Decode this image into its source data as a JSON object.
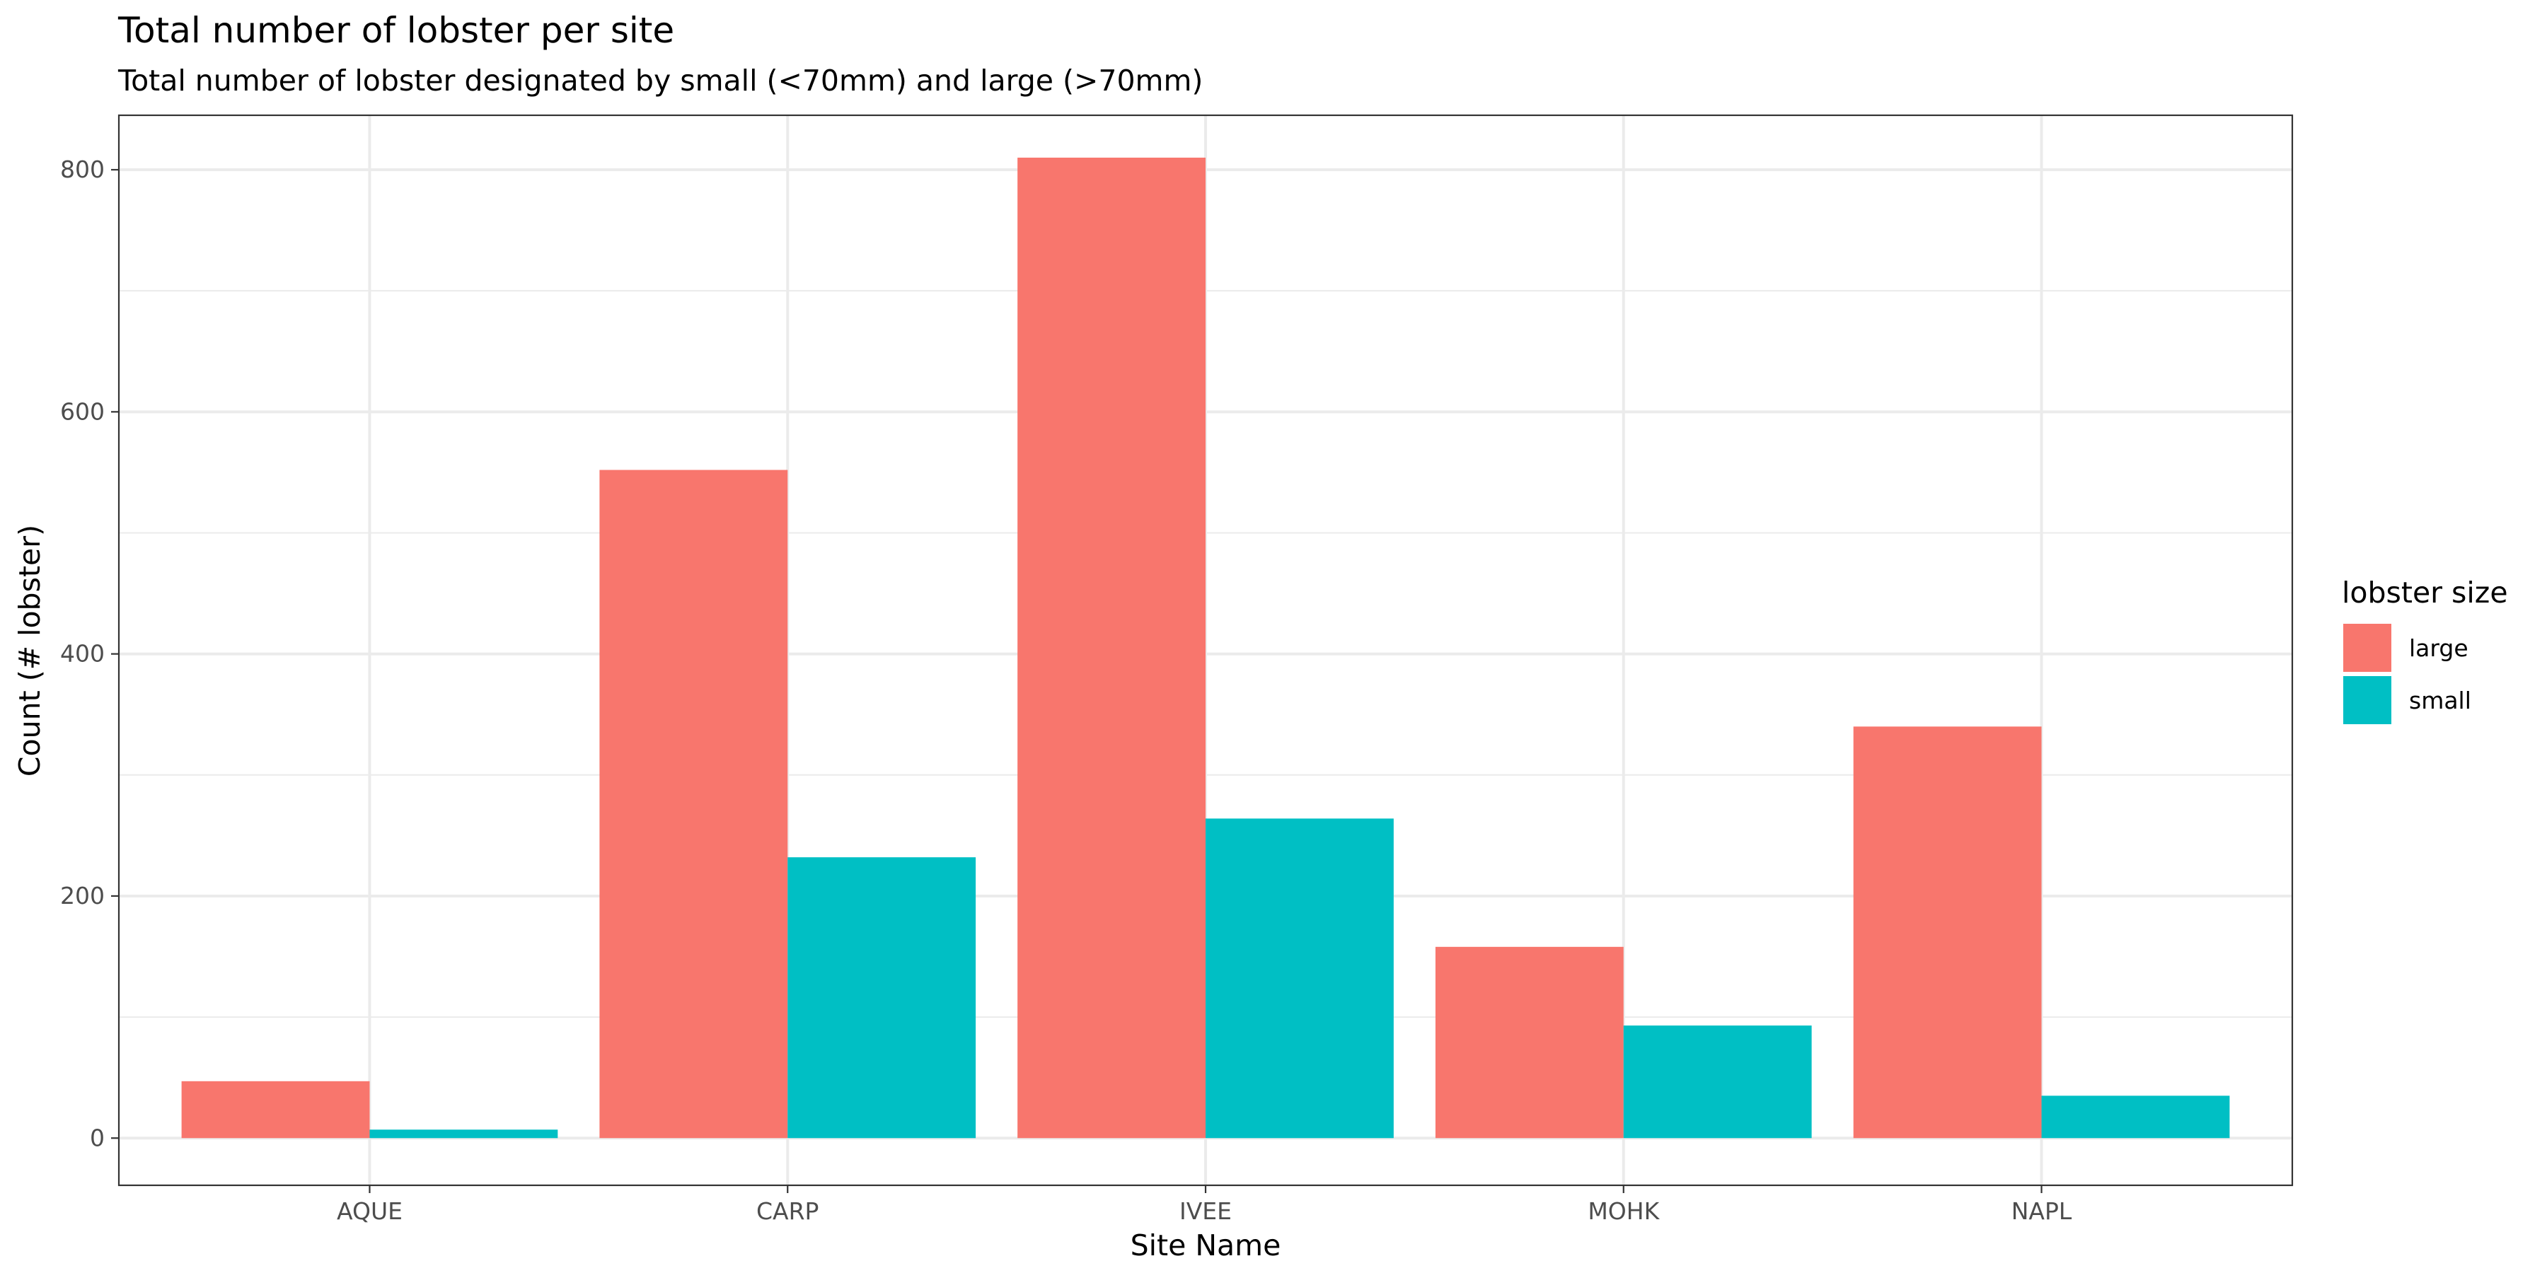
{
  "chart_data": {
    "type": "bar",
    "title": "Total number of lobster per site",
    "subtitle": "Total number of lobster designated by small (<70mm) and large (>70mm)",
    "xlabel": "Site Name",
    "ylabel": "Count (# lobster)",
    "categories": [
      "AQUE",
      "CARP",
      "IVEE",
      "MOHK",
      "NAPL"
    ],
    "series": [
      {
        "name": "large",
        "color": "#F8766D",
        "values": [
          47,
          552,
          810,
          158,
          340
        ]
      },
      {
        "name": "small",
        "color": "#00BFC4",
        "values": [
          7,
          232,
          264,
          93,
          35
        ]
      }
    ],
    "ylim": [
      -39,
      845
    ],
    "yticks": [
      0,
      200,
      400,
      600,
      800
    ],
    "grid": true,
    "legend": {
      "title": "lobster size",
      "placement": "right"
    }
  }
}
